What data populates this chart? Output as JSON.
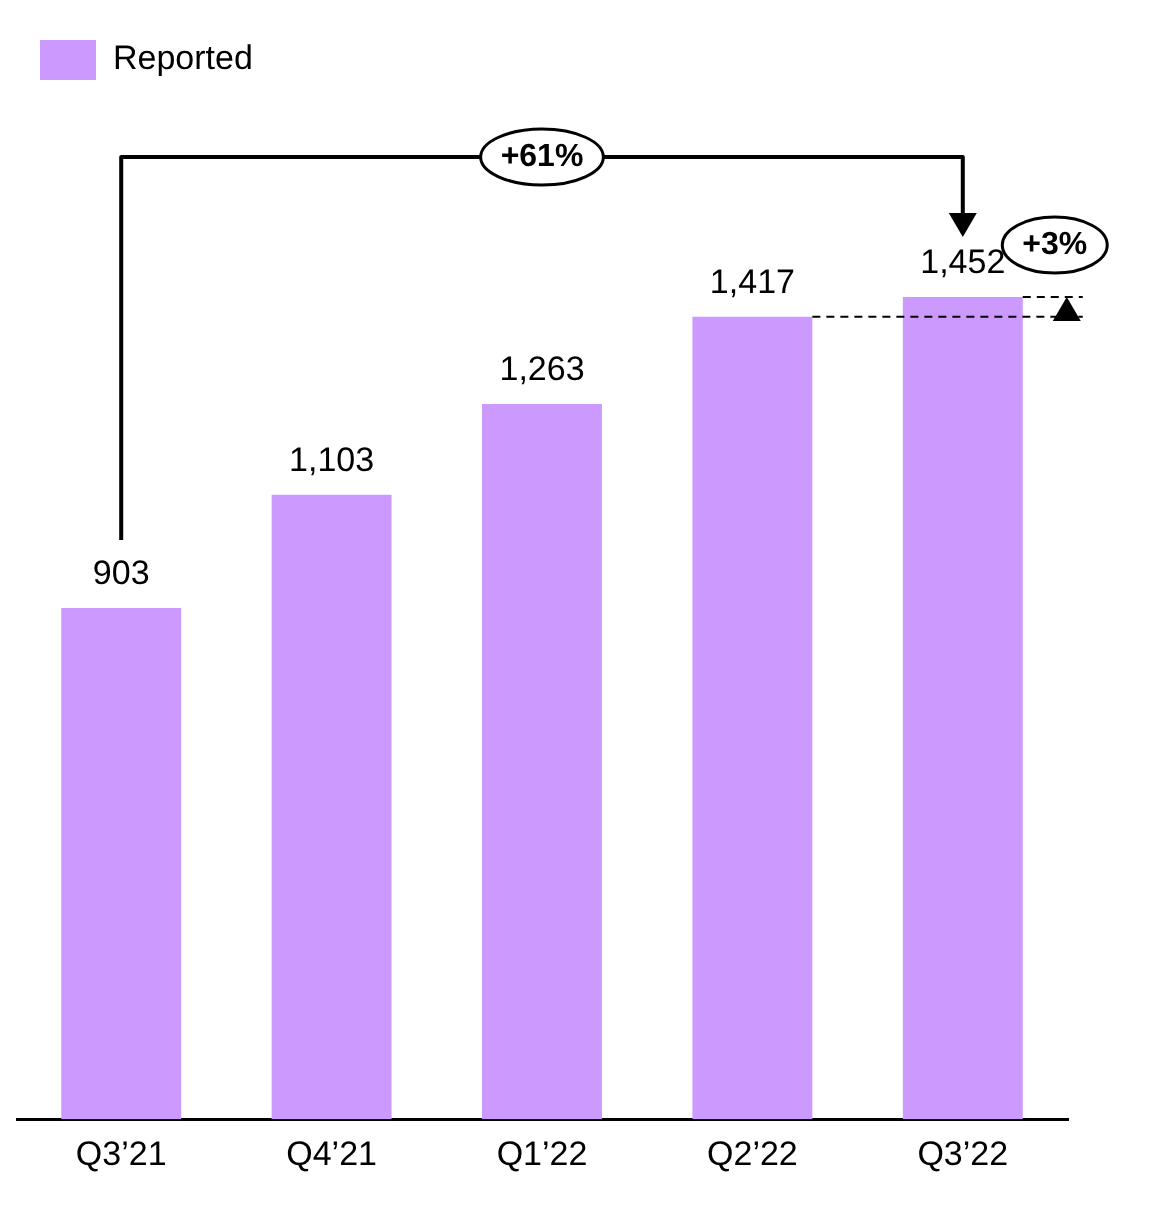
{
  "chart_data": {
    "type": "bar",
    "categories": [
      "Q3’21",
      "Q4’21",
      "Q1’22",
      "Q2’22",
      "Q3’22"
    ],
    "series": [
      {
        "name": "Reported",
        "color": "#cc99ff",
        "values": [
          903,
          1103,
          1263,
          1417,
          1452
        ],
        "value_labels": [
          "903",
          "1,103",
          "1,263",
          "1,417",
          "1,452"
        ]
      }
    ],
    "legend": "top left",
    "grid": false,
    "annotations": [
      "+61%",
      "+3%"
    ]
  }
}
